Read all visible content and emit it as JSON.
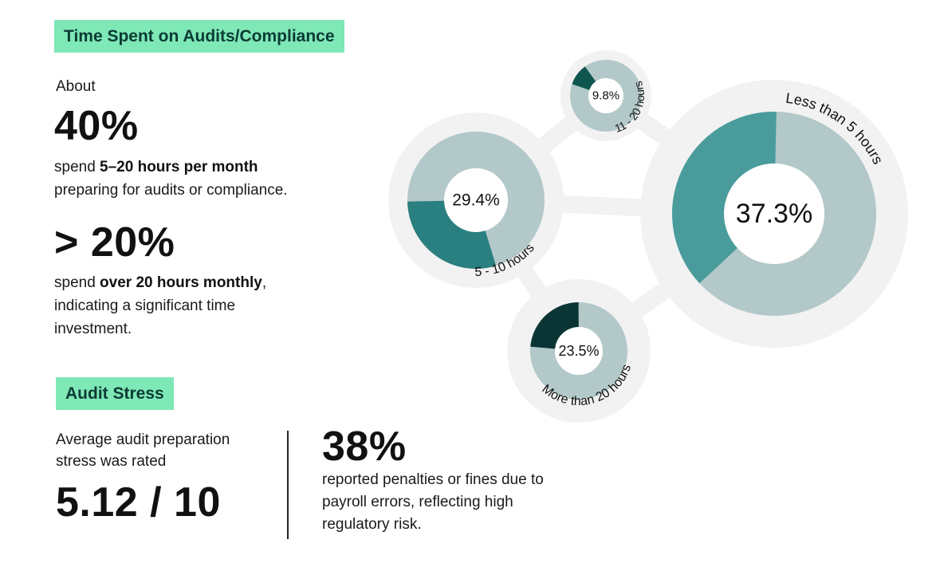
{
  "time_section": {
    "tag": "Time Spent on Audits/Compliance",
    "about": "About",
    "stat1_value": "40%",
    "stat1_text_pre": "spend ",
    "stat1_text_bold": "5–20 hours per month",
    "stat1_text_line2": "preparing for audits or compliance.",
    "stat2_value": "> 20%",
    "stat2_text_pre": "spend ",
    "stat2_text_bold": "over 20 hours monthly",
    "stat2_text_post": ",",
    "stat2_text_line2": "indicating a significant time",
    "stat2_text_line3": "investment."
  },
  "stress_section": {
    "tag": "Audit Stress",
    "rating_line1": "Average audit preparation",
    "rating_line2": "stress was rated",
    "rating_value": "5.12 / 10",
    "penalty_value": "38%",
    "penalty_line1": "reported penalties or fines due to",
    "penalty_line2": "payroll errors, reflecting high",
    "penalty_line3": "regulatory risk."
  },
  "chart_data": {
    "type": "pie",
    "title": "Time Spent on Audits/Compliance",
    "categories": [
      "Less than 5 hours",
      "5 - 10 hours",
      "11 - 20 hours",
      "More than 20 hours"
    ],
    "values": [
      37.3,
      29.4,
      9.8,
      23.5
    ],
    "labels": [
      "37.3%",
      "29.4%",
      "9.8%",
      "23.5%"
    ],
    "colors": [
      "#4a9c9c",
      "#2a7f80",
      "#0f5650",
      "#0b3535"
    ],
    "track_color": "#b3c8c8",
    "halo_color": "#f2f2f2"
  }
}
